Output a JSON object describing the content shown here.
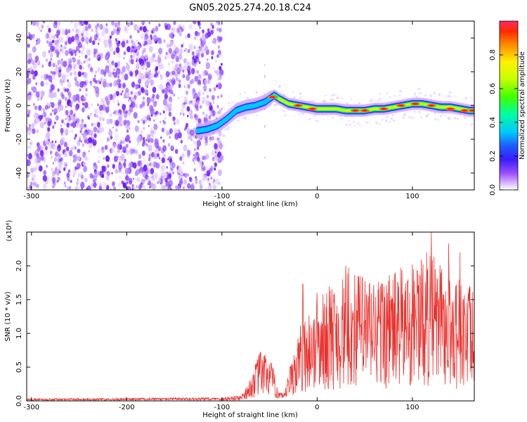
{
  "title": "GN05.2025.274.20.18.C24",
  "colors": {
    "snr_line": "#e8332f",
    "colormap": [
      "#ffffff",
      "#d9b8ff",
      "#a968ff",
      "#6a20ff",
      "#2a3bff",
      "#00c8ff",
      "#00ff7a",
      "#9cff00",
      "#fff000",
      "#ff7a00",
      "#ff1e00"
    ]
  },
  "chart_data": [
    {
      "type": "heatmap",
      "name": "spectrogram",
      "xlabel": "Height of straight line (km)",
      "ylabel": "Frequency (Hz)",
      "xlim": [
        -305,
        165
      ],
      "ylim": [
        -50,
        50
      ],
      "xticks": [
        -300,
        -200,
        -100,
        0,
        100
      ],
      "yticks": [
        -40,
        -20,
        0,
        20,
        40
      ],
      "colorbar": {
        "label": "Normalized spectral amplitude",
        "range": [
          0,
          1
        ],
        "ticks": [
          "0.0",
          "0.2",
          "0.4",
          "0.6",
          "0.8"
        ]
      },
      "ridge": {
        "x": [
          -125,
          -115,
          -105,
          -95,
          -85,
          -75,
          -65,
          -55,
          -50,
          -45,
          -40,
          -30,
          -20,
          -10,
          0,
          10,
          20,
          30,
          40,
          50,
          60,
          70,
          80,
          90,
          100,
          110,
          120,
          130,
          140,
          150,
          160,
          165
        ],
        "y": [
          -15,
          -14,
          -12,
          -8,
          -3,
          -1,
          0,
          2,
          4,
          6,
          4,
          1,
          0,
          -1,
          -2,
          -2,
          -2,
          -3,
          -3,
          -3,
          -2,
          -2,
          -1,
          0,
          1,
          1,
          0,
          -1,
          -1,
          -2,
          -3,
          -3
        ]
      },
      "noise_region": {
        "x": [
          -305,
          -100
        ],
        "y": [
          -50,
          50
        ]
      }
    },
    {
      "type": "line",
      "name": "snr",
      "xlabel": "Height of straight line (km)",
      "ylabel": "SNR (10 * v/v)",
      "scale_label": "(x10⁴)",
      "xlim": [
        -305,
        165
      ],
      "ylim": [
        0,
        2.5
      ],
      "xticks": [
        -300,
        -200,
        -100,
        0,
        100
      ],
      "yticks": [
        "0.0",
        "0.5",
        "1.0",
        "1.5",
        "2.0"
      ],
      "ytick_values": [
        0,
        0.5,
        1.0,
        1.5,
        2.0
      ],
      "envelope": {
        "x": [
          -305,
          -100,
          -80,
          -70,
          -60,
          -50,
          -40,
          -35,
          -30,
          -25,
          -20,
          -15,
          -10,
          0,
          10,
          20,
          30,
          40,
          50,
          60,
          80,
          100,
          110,
          120,
          130,
          140,
          150,
          160,
          165
        ],
        "y": [
          0.02,
          0.03,
          0.05,
          0.2,
          0.45,
          0.4,
          0.1,
          0.05,
          0.25,
          0.45,
          0.6,
          0.75,
          0.8,
          0.85,
          1.0,
          1.05,
          1.1,
          1.15,
          1.1,
          1.1,
          1.15,
          1.2,
          1.25,
          1.3,
          1.2,
          1.15,
          1.1,
          1.0,
          1.0
        ]
      },
      "peaks": {
        "x": [
          -60,
          -55,
          -48,
          -15,
          0,
          30,
          33,
          45,
          75,
          100,
          105,
          115,
          120,
          130,
          138,
          150,
          160,
          165
        ],
        "y": [
          0.57,
          0.65,
          0.55,
          1.73,
          1.6,
          2.0,
          1.97,
          1.85,
          1.78,
          2.02,
          1.93,
          2.2,
          2.5,
          1.9,
          2.33,
          2.2,
          1.7,
          1.62
        ]
      }
    }
  ]
}
